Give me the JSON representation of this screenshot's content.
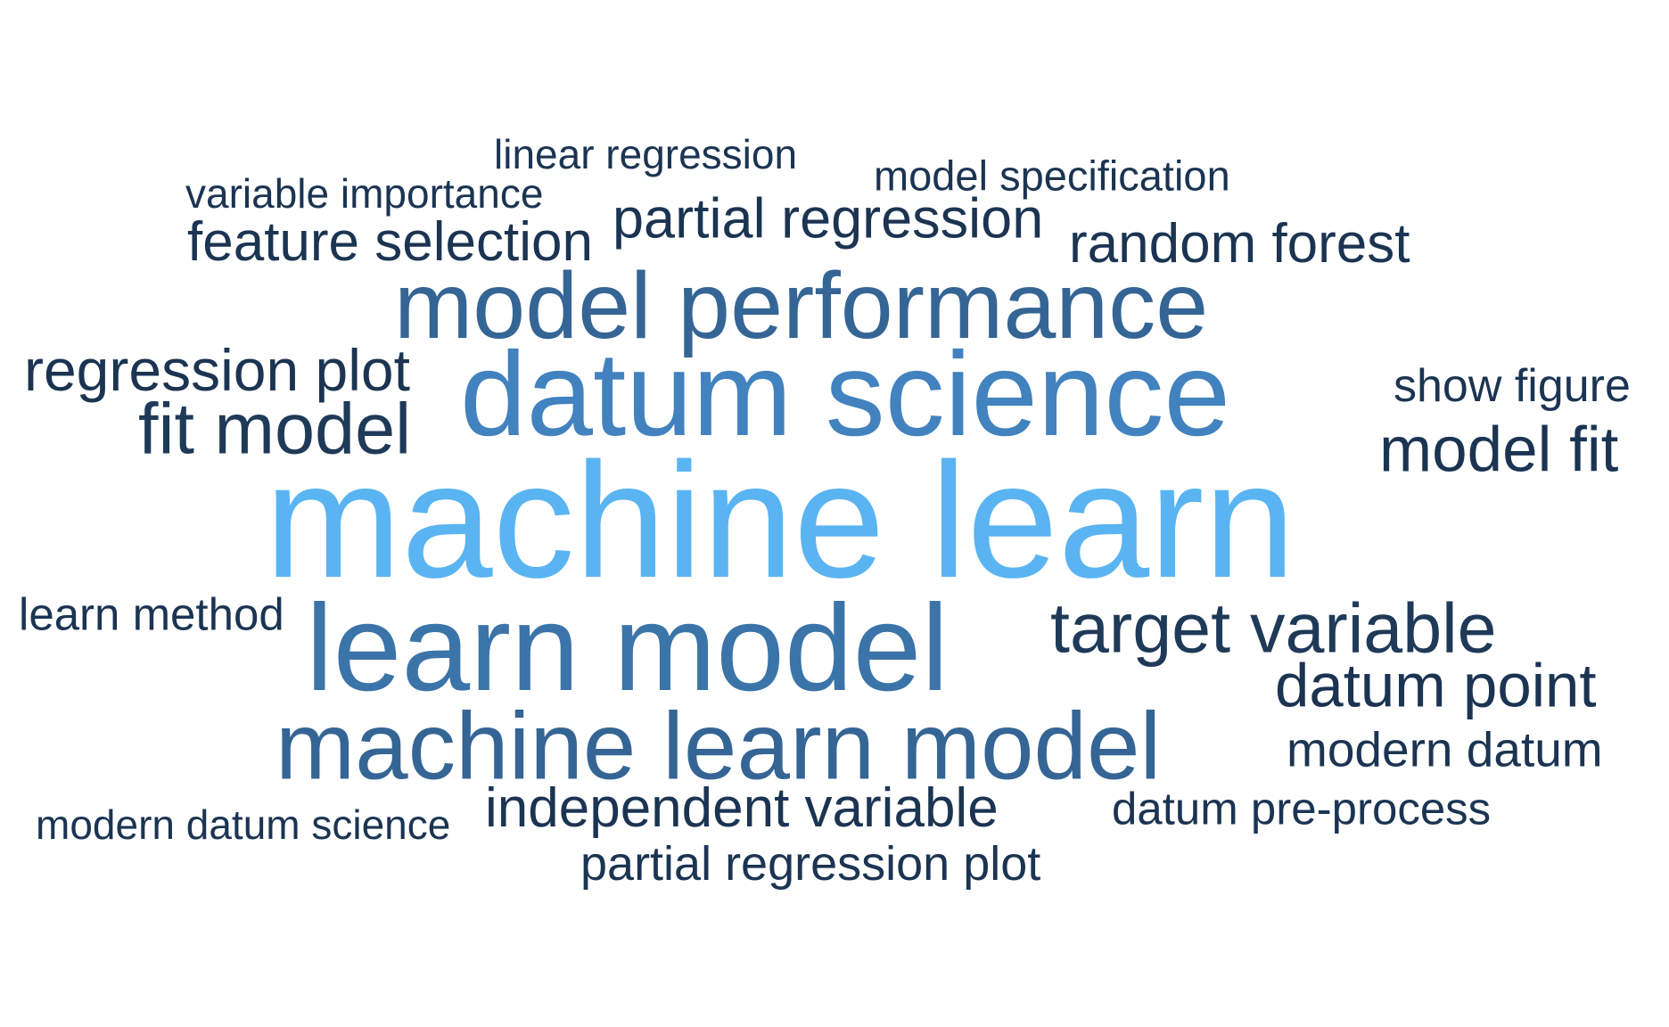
{
  "word_cloud": {
    "words": [
      {
        "text": "machine learn",
        "color": "#5ab4f2"
      },
      {
        "text": "datum science",
        "color": "#4182bf"
      },
      {
        "text": "learn model",
        "color": "#3b74a8"
      },
      {
        "text": "machine learn model",
        "color": "#346595"
      },
      {
        "text": "model performance",
        "color": "#346595"
      },
      {
        "text": "fit model",
        "color": "#1e3a58"
      },
      {
        "text": "target variable",
        "color": "#1e3a58"
      },
      {
        "text": "model fit",
        "color": "#1b3452"
      },
      {
        "text": "datum point",
        "color": "#1b3452"
      },
      {
        "text": "regression plot",
        "color": "#1b3452"
      },
      {
        "text": "partial regression",
        "color": "#1b3452"
      },
      {
        "text": "feature selection",
        "color": "#1b3452"
      },
      {
        "text": "random forest",
        "color": "#1b3452"
      },
      {
        "text": "independent variable",
        "color": "#1b3452"
      },
      {
        "text": "modern datum",
        "color": "#1b3452"
      },
      {
        "text": "partial regression plot",
        "color": "#1b3452"
      },
      {
        "text": "show figure",
        "color": "#1b3452"
      },
      {
        "text": "learn method",
        "color": "#1b3452"
      },
      {
        "text": "datum pre-process",
        "color": "#1b3452"
      },
      {
        "text": "model specification",
        "color": "#1b3452"
      },
      {
        "text": "linear regression",
        "color": "#1b3452"
      },
      {
        "text": "variable importance",
        "color": "#1b3452"
      },
      {
        "text": "modern datum science",
        "color": "#1b3452"
      }
    ]
  }
}
